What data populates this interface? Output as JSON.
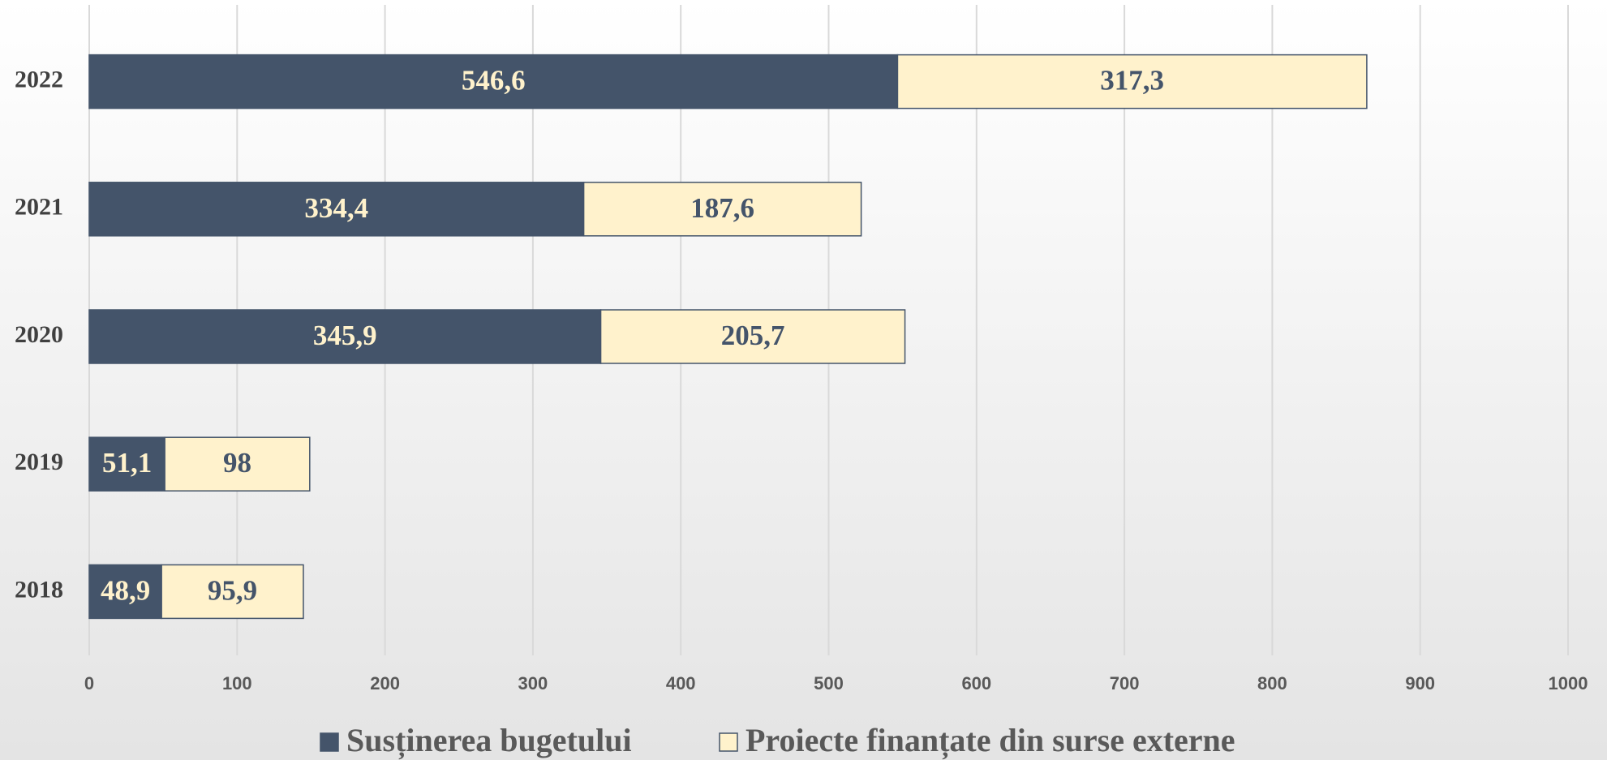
{
  "chart_data": {
    "type": "stacked-bar-horizontal",
    "categories": [
      "2018",
      "2019",
      "2020",
      "2021",
      "2022"
    ],
    "series": [
      {
        "name": "Susținerea bugetului",
        "color": "#44546a",
        "values": [
          48.9,
          51.1,
          345.9,
          334.4,
          546.6
        ],
        "value_labels": [
          "48,9",
          "51,1",
          "345,9",
          "334,4",
          "546,6"
        ]
      },
      {
        "name": "Proiecte finanțate din surse externe",
        "color": "#fff2cc",
        "values": [
          95.9,
          98,
          205.7,
          187.6,
          317.3
        ],
        "value_labels": [
          "95,9",
          "98",
          "205,7",
          "187,6",
          "317,3"
        ]
      }
    ],
    "xlim": [
      0,
      1000
    ],
    "xticks": [
      0,
      100,
      200,
      300,
      400,
      500,
      600,
      700,
      800,
      900,
      1000
    ],
    "grid": true,
    "legend": "bottom"
  }
}
